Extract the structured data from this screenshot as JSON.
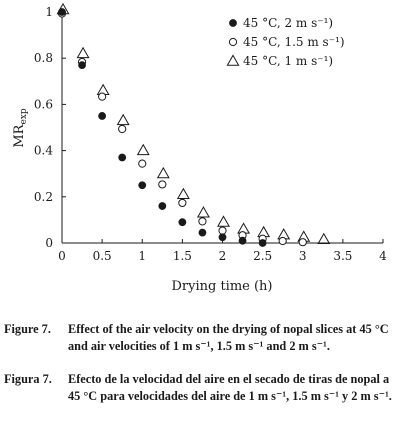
{
  "chart_data": {
    "type": "scatter",
    "xlabel": "Drying time (h)",
    "ylabel_main": "MR",
    "ylabel_sub": "exp",
    "xlim": [
      0,
      4
    ],
    "ylim": [
      0,
      1
    ],
    "x_ticks": [
      "0",
      "0.5",
      "1",
      "1.5",
      "2",
      "2.5",
      "3",
      "3.5",
      "4"
    ],
    "y_ticks": [
      "0",
      "0.2",
      "0.4",
      "0.6",
      "0.8",
      "1"
    ],
    "legend_position": "top-right",
    "grid": false,
    "series": [
      {
        "name": "45 °C, 2 m s⁻¹)",
        "marker": "filled-circle",
        "color": "#1a1a1a",
        "x": [
          0,
          0.25,
          0.5,
          0.75,
          1.0,
          1.25,
          1.5,
          1.75,
          2.0,
          2.25,
          2.5
        ],
        "y": [
          1.0,
          0.77,
          0.55,
          0.37,
          0.25,
          0.16,
          0.09,
          0.045,
          0.025,
          0.01,
          0.0
        ]
      },
      {
        "name": "45 °C, 1.5 m s⁻¹)",
        "marker": "open-circle",
        "color": "#1a1a1a",
        "x": [
          0,
          0.25,
          0.5,
          0.75,
          1.0,
          1.25,
          1.5,
          1.75,
          2.0,
          2.25,
          2.5,
          2.75,
          3.0
        ],
        "y": [
          1.0,
          0.79,
          0.64,
          0.5,
          0.35,
          0.26,
          0.18,
          0.1,
          0.06,
          0.04,
          0.025,
          0.015,
          0.01
        ]
      },
      {
        "name": "45 °C, 1 m s⁻¹)",
        "marker": "open-triangle",
        "color": "#1a1a1a",
        "x": [
          0,
          0.25,
          0.5,
          0.75,
          1.0,
          1.25,
          1.5,
          1.75,
          2.0,
          2.25,
          2.5,
          2.75,
          3.0,
          3.25
        ],
        "y": [
          1.0,
          0.81,
          0.65,
          0.52,
          0.39,
          0.29,
          0.2,
          0.12,
          0.08,
          0.05,
          0.035,
          0.025,
          0.015,
          0.005
        ]
      }
    ]
  },
  "caption_en": {
    "label": "Figure 7.",
    "text": "Effect of the air velocity on the drying of nopal slices at 45 °C and air velocities of 1 m s⁻¹, 1.5 m s⁻¹ and 2 m s⁻¹."
  },
  "caption_es": {
    "label": "Figura 7.",
    "text": "Efecto de la velocidad del aire en el secado de tiras de nopal a 45 °C para velocidades del aire de 1 m s⁻¹, 1.5 m s⁻¹ y 2 m s⁻¹."
  }
}
